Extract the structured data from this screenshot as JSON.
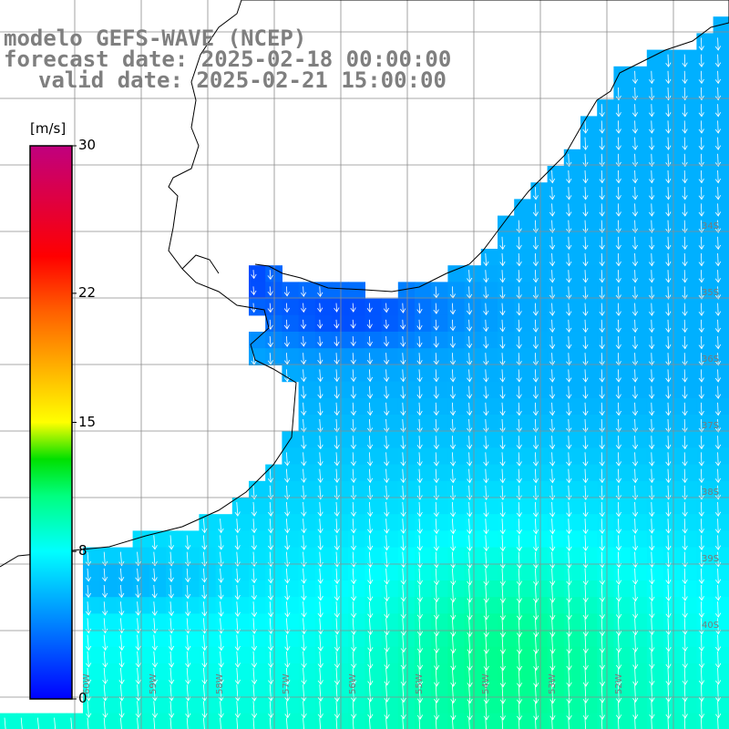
{
  "title": {
    "line1": "modelo GEFS-WAVE (NCEP)",
    "line2": "forecast date: 2025-02-18 00:00:00",
    "line3": "valid date: 2025-02-21 15:00:00"
  },
  "colorbar": {
    "unit": "[m/s]",
    "min": 0,
    "max": 30,
    "ticks": [
      {
        "value": 30,
        "label": "30"
      },
      {
        "value": 22,
        "label": "22"
      },
      {
        "value": 15,
        "label": "15"
      },
      {
        "value": 8,
        "label": "8"
      },
      {
        "value": 0,
        "label": "0"
      }
    ],
    "stops": [
      {
        "value": 0,
        "color": "#0000ff"
      },
      {
        "value": 4,
        "color": "#0080ff"
      },
      {
        "value": 8,
        "color": "#00ffff"
      },
      {
        "value": 11,
        "color": "#00ff80"
      },
      {
        "value": 13,
        "color": "#00e000"
      },
      {
        "value": 15,
        "color": "#ffff00"
      },
      {
        "value": 18,
        "color": "#ffb000"
      },
      {
        "value": 21,
        "color": "#ff6000"
      },
      {
        "value": 24,
        "color": "#ff0000"
      },
      {
        "value": 30,
        "color": "#c0007f"
      }
    ]
  },
  "latitude_labels": [
    "34S",
    "35S",
    "36S",
    "37S",
    "38S",
    "39S",
    "40S"
  ],
  "longitude_labels": [
    "60W",
    "59W",
    "58W",
    "57W",
    "56W",
    "55W",
    "54W",
    "53W",
    "52W"
  ],
  "colors": {
    "land": "#ffffff",
    "coastline": "#000000",
    "grid": "#8c8c8c",
    "arrows": "#ffffff",
    "title": "#7f7f7f"
  }
}
